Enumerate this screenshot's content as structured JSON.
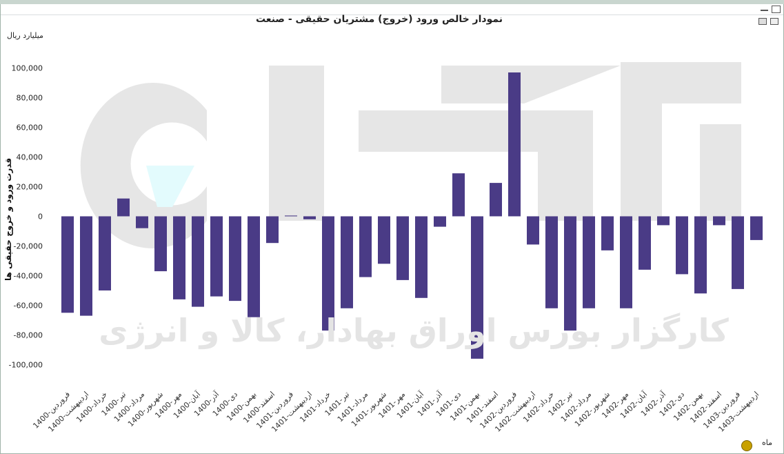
{
  "chart_data": {
    "type": "bar",
    "title": "نمودار خالص ورود (خروج) مشتریان حقیقی - صنعت",
    "unit_label": "میلیارد ریال",
    "ylabel": "قدرت ورود و خروج حقیقی ها",
    "period_label": "ماه",
    "watermark_text": "کارگزار بورس اوراق بهادار، کالا و انرژی",
    "ylim": [
      -100000,
      110000
    ],
    "yticks": [
      100000,
      80000,
      60000,
      40000,
      20000,
      0,
      -20000,
      -40000,
      -60000,
      -80000,
      -100000
    ],
    "ytick_labels": [
      "100,000",
      "80,000",
      "60,000",
      "40,000",
      "20,000",
      "0",
      "-20,000",
      "-40,000",
      "-60,000",
      "-80,000",
      "-100,000"
    ],
    "bar_color": "#4a3b86",
    "categories": [
      "1400-فروردین",
      "1400-اردیبهشت",
      "1400-خرداد",
      "1400-تیر",
      "1400-مرداد",
      "1400-شهریور",
      "1400-مهر",
      "1400-آبان",
      "1400-آذر",
      "1400-دی",
      "1400-بهمن",
      "1400-اسفند",
      "1401-فروردین",
      "1401-اردیبهشت",
      "1401-خرداد",
      "1401-تیر",
      "1401-مرداد",
      "1401-شهریور",
      "1401-مهر",
      "1401-آبان",
      "1401-آذر",
      "1401-دی",
      "1401-بهمن",
      "1401-اسفند",
      "1402-فروردین",
      "1402-اردیبهشت",
      "1402-خرداد",
      "1402-تیر",
      "1402-مرداد",
      "1402-شهریور",
      "1402-مهر",
      "1402-آبان",
      "1402-آذر",
      "1402-دی",
      "1402-بهمن",
      "1402-اسفند",
      "1403-فروردین",
      "1403-اردیبهشت"
    ],
    "values": [
      -65000,
      -67000,
      -50000,
      12000,
      -8000,
      -37000,
      -56000,
      -61000,
      -54000,
      -57000,
      -68000,
      -18000,
      500,
      -2000,
      -77000,
      -62000,
      -41000,
      -32000,
      -43000,
      -55000,
      -7000,
      29000,
      -96000,
      22500,
      97000,
      -19000,
      -62000,
      -77000,
      -62000,
      -23000,
      -62000,
      -36000,
      -6000,
      -39000,
      -52000,
      -6000,
      -49000,
      -16000
    ]
  }
}
